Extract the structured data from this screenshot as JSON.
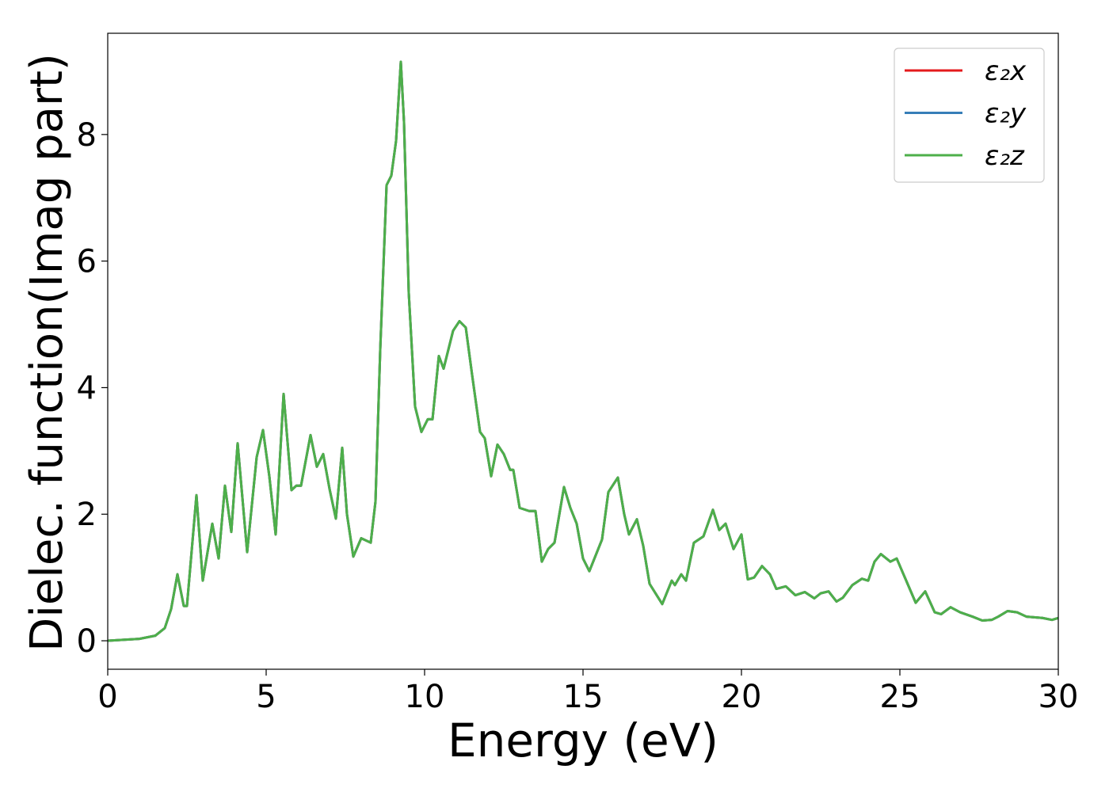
{
  "chart_data": {
    "type": "line",
    "xlabel": "Energy (eV)",
    "ylabel": "Dielec. function(Imag part)",
    "xlim": [
      0,
      30
    ],
    "ylim": [
      -0.45,
      9.6
    ],
    "xticks": [
      0,
      5,
      10,
      15,
      20,
      25,
      30
    ],
    "yticks": [
      0,
      2,
      4,
      6,
      8
    ],
    "legend": "upper right",
    "x": [
      0,
      1.0,
      1.5,
      1.8,
      2.0,
      2.2,
      2.4,
      2.5,
      2.8,
      3.0,
      3.3,
      3.5,
      3.7,
      3.9,
      4.1,
      4.4,
      4.7,
      4.9,
      5.1,
      5.3,
      5.55,
      5.8,
      5.95,
      6.1,
      6.4,
      6.6,
      6.8,
      7.0,
      7.2,
      7.4,
      7.55,
      7.75,
      8.0,
      8.3,
      8.45,
      8.6,
      8.8,
      8.95,
      9.1,
      9.25,
      9.35,
      9.5,
      9.7,
      9.9,
      10.1,
      10.25,
      10.45,
      10.6,
      10.9,
      11.1,
      11.3,
      11.5,
      11.75,
      11.9,
      12.1,
      12.3,
      12.5,
      12.7,
      12.8,
      13.0,
      13.3,
      13.5,
      13.7,
      13.9,
      14.1,
      14.4,
      14.6,
      14.8,
      15.0,
      15.2,
      15.4,
      15.6,
      15.8,
      16.1,
      16.3,
      16.45,
      16.7,
      16.9,
      17.1,
      17.5,
      17.8,
      17.9,
      18.1,
      18.25,
      18.5,
      18.8,
      19.1,
      19.3,
      19.5,
      19.75,
      20.0,
      20.2,
      20.4,
      20.65,
      20.9,
      21.1,
      21.4,
      21.7,
      22.0,
      22.3,
      22.5,
      22.75,
      23.0,
      23.2,
      23.5,
      23.8,
      24.0,
      24.2,
      24.4,
      24.7,
      24.9,
      25.2,
      25.5,
      25.8,
      26.1,
      26.3,
      26.6,
      26.9,
      27.3,
      27.6,
      27.9,
      28.1,
      28.4,
      28.7,
      29.0,
      29.5,
      29.8,
      30.0
    ],
    "series": [
      {
        "name": "ε₂x",
        "color": "#e41a1c",
        "values": [
          0.0,
          0.03,
          0.08,
          0.2,
          0.5,
          1.05,
          0.55,
          0.55,
          2.3,
          0.95,
          1.85,
          1.3,
          2.45,
          1.72,
          3.12,
          1.4,
          2.9,
          3.33,
          2.6,
          1.68,
          3.9,
          2.38,
          2.45,
          2.45,
          3.25,
          2.75,
          2.95,
          2.4,
          1.93,
          3.05,
          2.0,
          1.33,
          1.62,
          1.55,
          2.2,
          4.6,
          7.2,
          7.35,
          7.9,
          9.15,
          8.2,
          5.5,
          3.7,
          3.3,
          3.5,
          3.5,
          4.5,
          4.3,
          4.9,
          5.05,
          4.95,
          4.2,
          3.3,
          3.2,
          2.6,
          3.1,
          2.95,
          2.7,
          2.7,
          2.1,
          2.05,
          2.05,
          1.25,
          1.45,
          1.55,
          2.43,
          2.1,
          1.85,
          1.3,
          1.1,
          1.35,
          1.6,
          2.35,
          2.58,
          2.0,
          1.68,
          1.92,
          1.5,
          0.9,
          0.58,
          0.95,
          0.88,
          1.05,
          0.95,
          1.55,
          1.65,
          2.07,
          1.75,
          1.85,
          1.45,
          1.68,
          0.97,
          1.0,
          1.18,
          1.05,
          0.82,
          0.86,
          0.72,
          0.77,
          0.67,
          0.75,
          0.78,
          0.62,
          0.68,
          0.88,
          0.98,
          0.95,
          1.25,
          1.37,
          1.25,
          1.3,
          0.95,
          0.6,
          0.78,
          0.45,
          0.42,
          0.53,
          0.45,
          0.38,
          0.32,
          0.33,
          0.38,
          0.47,
          0.45,
          0.38,
          0.36,
          0.33,
          0.36
        ]
      },
      {
        "name": "ε₂y",
        "color": "#377eb8",
        "values": [
          0.0,
          0.03,
          0.08,
          0.2,
          0.5,
          1.05,
          0.55,
          0.55,
          2.3,
          0.95,
          1.85,
          1.3,
          2.45,
          1.72,
          3.12,
          1.4,
          2.9,
          3.33,
          2.6,
          1.68,
          3.9,
          2.38,
          2.45,
          2.45,
          3.25,
          2.75,
          2.95,
          2.4,
          1.93,
          3.05,
          2.0,
          1.33,
          1.62,
          1.55,
          2.2,
          4.6,
          7.2,
          7.35,
          7.9,
          9.15,
          8.2,
          5.5,
          3.7,
          3.3,
          3.5,
          3.5,
          4.5,
          4.3,
          4.9,
          5.05,
          4.95,
          4.2,
          3.3,
          3.2,
          2.6,
          3.1,
          2.95,
          2.7,
          2.7,
          2.1,
          2.05,
          2.05,
          1.25,
          1.45,
          1.55,
          2.43,
          2.1,
          1.85,
          1.3,
          1.1,
          1.35,
          1.6,
          2.35,
          2.58,
          2.0,
          1.68,
          1.92,
          1.5,
          0.9,
          0.58,
          0.95,
          0.88,
          1.05,
          0.95,
          1.55,
          1.65,
          2.07,
          1.75,
          1.85,
          1.45,
          1.68,
          0.97,
          1.0,
          1.18,
          1.05,
          0.82,
          0.86,
          0.72,
          0.77,
          0.67,
          0.75,
          0.78,
          0.62,
          0.68,
          0.88,
          0.98,
          0.95,
          1.25,
          1.37,
          1.25,
          1.3,
          0.95,
          0.6,
          0.78,
          0.45,
          0.42,
          0.53,
          0.45,
          0.38,
          0.32,
          0.33,
          0.38,
          0.47,
          0.45,
          0.38,
          0.36,
          0.33,
          0.36
        ]
      },
      {
        "name": "ε₂z",
        "color": "#4daf4a",
        "values": [
          0.0,
          0.03,
          0.08,
          0.2,
          0.5,
          1.05,
          0.55,
          0.55,
          2.3,
          0.95,
          1.85,
          1.3,
          2.45,
          1.72,
          3.12,
          1.4,
          2.9,
          3.33,
          2.6,
          1.68,
          3.9,
          2.38,
          2.45,
          2.45,
          3.25,
          2.75,
          2.95,
          2.4,
          1.93,
          3.05,
          2.0,
          1.33,
          1.62,
          1.55,
          2.2,
          4.6,
          7.2,
          7.35,
          7.9,
          9.15,
          8.2,
          5.5,
          3.7,
          3.3,
          3.5,
          3.5,
          4.5,
          4.3,
          4.9,
          5.05,
          4.95,
          4.2,
          3.3,
          3.2,
          2.6,
          3.1,
          2.95,
          2.7,
          2.7,
          2.1,
          2.05,
          2.05,
          1.25,
          1.45,
          1.55,
          2.43,
          2.1,
          1.85,
          1.3,
          1.1,
          1.35,
          1.6,
          2.35,
          2.58,
          2.0,
          1.68,
          1.92,
          1.5,
          0.9,
          0.58,
          0.95,
          0.88,
          1.05,
          0.95,
          1.55,
          1.65,
          2.07,
          1.75,
          1.85,
          1.45,
          1.68,
          0.97,
          1.0,
          1.18,
          1.05,
          0.82,
          0.86,
          0.72,
          0.77,
          0.67,
          0.75,
          0.78,
          0.62,
          0.68,
          0.88,
          0.98,
          0.95,
          1.25,
          1.37,
          1.25,
          1.3,
          0.95,
          0.6,
          0.78,
          0.45,
          0.42,
          0.53,
          0.45,
          0.38,
          0.32,
          0.33,
          0.38,
          0.47,
          0.45,
          0.38,
          0.36,
          0.33,
          0.36
        ]
      }
    ]
  }
}
